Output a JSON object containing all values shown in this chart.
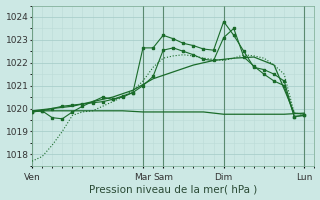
{
  "xlabel": "Pression niveau de la mer( hPa )",
  "background_color": "#cce8e4",
  "grid_major_color": "#aacfcb",
  "grid_minor_color": "#bbdbd7",
  "line_color": "#1a6b2a",
  "ylim": [
    1017.5,
    1024.5
  ],
  "yticks": [
    1018,
    1019,
    1020,
    1021,
    1022,
    1023,
    1024
  ],
  "xlim": [
    0,
    28
  ],
  "day_labels": [
    "Ven",
    "",
    "Mar",
    "Sam",
    "",
    "Dim",
    "",
    "Lun"
  ],
  "xtick_labels": [
    "Ven",
    "Mar",
    "Sam",
    "Dim",
    "Lun"
  ],
  "xtick_positions": [
    0,
    11,
    13,
    19,
    27
  ],
  "vline_positions": [
    0,
    11,
    13,
    19,
    27
  ],
  "line_flat_x": [
    0,
    3,
    5,
    7,
    9,
    11,
    13,
    15,
    17,
    19,
    21,
    23,
    25,
    27
  ],
  "line_flat_y": [
    1019.9,
    1019.9,
    1019.9,
    1019.9,
    1019.9,
    1019.85,
    1019.85,
    1019.85,
    1019.85,
    1019.75,
    1019.75,
    1019.75,
    1019.75,
    1019.8
  ],
  "line_trend1_x": [
    0,
    2,
    4,
    6,
    8,
    10,
    12,
    14,
    16,
    18,
    20,
    22,
    24,
    26,
    27
  ],
  "line_trend1_y": [
    1019.9,
    1020.0,
    1020.1,
    1020.3,
    1020.5,
    1020.8,
    1021.3,
    1021.6,
    1021.9,
    1022.1,
    1022.2,
    1022.25,
    1021.9,
    1019.8,
    1019.75
  ],
  "line_dotted_x": [
    0,
    1,
    2,
    3,
    4,
    5,
    6,
    7,
    8,
    9,
    10,
    11,
    12,
    13,
    14,
    15,
    16,
    17,
    18,
    19,
    20,
    21,
    22,
    23,
    24,
    25,
    26,
    27
  ],
  "line_dotted_y": [
    1017.7,
    1017.9,
    1018.4,
    1019.0,
    1019.7,
    1019.85,
    1019.9,
    1020.1,
    1020.3,
    1020.5,
    1020.8,
    1021.2,
    1021.8,
    1022.2,
    1022.3,
    1022.35,
    1022.3,
    1022.2,
    1022.15,
    1022.1,
    1022.2,
    1022.35,
    1022.3,
    1022.2,
    1021.9,
    1021.5,
    1019.8,
    1019.75
  ],
  "line_marked1_x": [
    0,
    1,
    2,
    3,
    4,
    5,
    6,
    7,
    8,
    9,
    10,
    11,
    12,
    13,
    14,
    15,
    16,
    17,
    18,
    19,
    20,
    21,
    22,
    23,
    24,
    25,
    26,
    27
  ],
  "line_marked1_y": [
    1019.85,
    1019.9,
    1019.6,
    1019.55,
    1019.85,
    1020.1,
    1020.3,
    1020.5,
    1020.4,
    1020.55,
    1020.7,
    1022.65,
    1022.65,
    1023.2,
    1023.05,
    1022.85,
    1022.75,
    1022.6,
    1022.55,
    1023.8,
    1023.2,
    1022.5,
    1021.8,
    1021.7,
    1021.5,
    1021.2,
    1019.65,
    1019.7
  ],
  "line_marked2_x": [
    0,
    1,
    2,
    3,
    4,
    5,
    6,
    7,
    8,
    9,
    10,
    11,
    12,
    13,
    14,
    15,
    16,
    17,
    18,
    19,
    20,
    21,
    22,
    23,
    24,
    25,
    26,
    27
  ],
  "line_marked2_y": [
    1019.85,
    1019.9,
    1020.0,
    1020.1,
    1020.15,
    1020.2,
    1020.25,
    1020.3,
    1020.4,
    1020.5,
    1020.7,
    1021.0,
    1021.4,
    1022.55,
    1022.65,
    1022.5,
    1022.35,
    1022.15,
    1022.1,
    1023.1,
    1023.5,
    1022.25,
    1021.85,
    1021.5,
    1021.2,
    1021.0,
    1019.65,
    1019.7
  ]
}
